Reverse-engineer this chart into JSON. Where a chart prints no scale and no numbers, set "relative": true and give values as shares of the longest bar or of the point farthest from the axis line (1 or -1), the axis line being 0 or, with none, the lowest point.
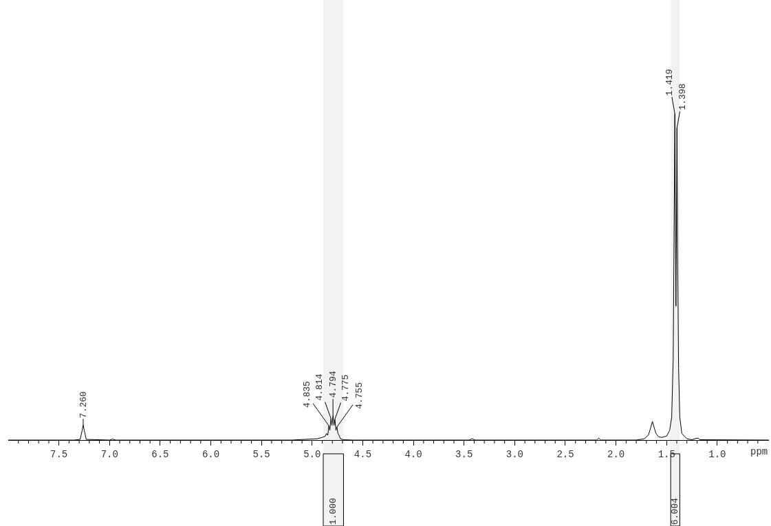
{
  "chart_data": {
    "type": "line",
    "relative": true,
    "xlabel": "ppm",
    "color": "#000000",
    "legend": false,
    "marker": "none",
    "line_style": "solid",
    "x": [
      8.0,
      7.35,
      7.29,
      7.27,
      7.26,
      7.25,
      7.23,
      7.0,
      6.97,
      6.94,
      5.2,
      4.95,
      4.9,
      4.87,
      4.858,
      4.845,
      4.835,
      4.825,
      4.814,
      4.804,
      4.794,
      4.784,
      4.775,
      4.765,
      4.755,
      4.745,
      4.735,
      4.72,
      4.69,
      4.6,
      3.45,
      3.42,
      3.39,
      2.19,
      2.17,
      2.15,
      1.8,
      1.72,
      1.68,
      1.655,
      1.64,
      1.625,
      1.605,
      1.58,
      1.55,
      1.5,
      1.47,
      1.45,
      1.435,
      1.425,
      1.419,
      1.412,
      1.408,
      1.404,
      1.398,
      1.392,
      1.382,
      1.37,
      1.35,
      1.3,
      1.25,
      1.21,
      1.19,
      1.17,
      0.49
    ],
    "values": [
      0,
      0,
      0.002,
      0.03,
      0.046,
      0.03,
      0.002,
      0,
      0.003,
      0,
      0,
      0.004,
      0.008,
      0.012,
      0.02,
      0.015,
      0.044,
      0.03,
      0.066,
      0.045,
      0.075,
      0.045,
      0.064,
      0.03,
      0.04,
      0.02,
      0.015,
      0.004,
      0.001,
      0,
      0,
      0.004,
      0,
      0,
      0.006,
      0,
      0,
      0.004,
      0.015,
      0.04,
      0.057,
      0.04,
      0.02,
      0.01,
      0.008,
      0.012,
      0.03,
      0.07,
      0.25,
      0.7,
      1.0,
      0.6,
      0.41,
      0.6,
      0.956,
      0.6,
      0.22,
      0.07,
      0.02,
      0.004,
      0.001,
      0.005,
      0.006,
      0.001,
      0
    ],
    "xlim": [
      8.0,
      0.49
    ],
    "xticks": [
      {
        "value": 7.9,
        "label": null
      },
      {
        "value": 7.8,
        "label": null
      },
      {
        "value": 7.7,
        "label": null
      },
      {
        "value": 7.6,
        "label": null
      },
      {
        "value": 7.5,
        "label": "7.5"
      },
      {
        "value": 7.4,
        "label": null
      },
      {
        "value": 7.3,
        "label": null
      },
      {
        "value": 7.2,
        "label": null
      },
      {
        "value": 7.1,
        "label": null
      },
      {
        "value": 7.0,
        "label": "7.0"
      },
      {
        "value": 6.9,
        "label": null
      },
      {
        "value": 6.8,
        "label": null
      },
      {
        "value": 6.7,
        "label": null
      },
      {
        "value": 6.6,
        "label": null
      },
      {
        "value": 6.5,
        "label": "6.5"
      },
      {
        "value": 6.4,
        "label": null
      },
      {
        "value": 6.3,
        "label": null
      },
      {
        "value": 6.2,
        "label": null
      },
      {
        "value": 6.1,
        "label": null
      },
      {
        "value": 6.0,
        "label": "6.0"
      },
      {
        "value": 5.9,
        "label": null
      },
      {
        "value": 5.8,
        "label": null
      },
      {
        "value": 5.7,
        "label": null
      },
      {
        "value": 5.6,
        "label": null
      },
      {
        "value": 5.5,
        "label": "5.5"
      },
      {
        "value": 5.4,
        "label": null
      },
      {
        "value": 5.3,
        "label": null
      },
      {
        "value": 5.2,
        "label": null
      },
      {
        "value": 5.1,
        "label": null
      },
      {
        "value": 5.0,
        "label": "5.0"
      },
      {
        "value": 4.9,
        "label": null
      },
      {
        "value": 4.8,
        "label": null
      },
      {
        "value": 4.7,
        "label": null
      },
      {
        "value": 4.6,
        "label": null
      },
      {
        "value": 4.5,
        "label": "4.5"
      },
      {
        "value": 4.4,
        "label": null
      },
      {
        "value": 4.3,
        "label": null
      },
      {
        "value": 4.2,
        "label": null
      },
      {
        "value": 4.1,
        "label": null
      },
      {
        "value": 4.0,
        "label": "4.0"
      },
      {
        "value": 3.9,
        "label": null
      },
      {
        "value": 3.8,
        "label": null
      },
      {
        "value": 3.7,
        "label": null
      },
      {
        "value": 3.6,
        "label": null
      },
      {
        "value": 3.5,
        "label": "3.5"
      },
      {
        "value": 3.4,
        "label": null
      },
      {
        "value": 3.3,
        "label": null
      },
      {
        "value": 3.2,
        "label": null
      },
      {
        "value": 3.1,
        "label": null
      },
      {
        "value": 3.0,
        "label": "3.0"
      },
      {
        "value": 2.9,
        "label": null
      },
      {
        "value": 2.8,
        "label": null
      },
      {
        "value": 2.7,
        "label": null
      },
      {
        "value": 2.6,
        "label": null
      },
      {
        "value": 2.5,
        "label": "2.5"
      },
      {
        "value": 2.4,
        "label": null
      },
      {
        "value": 2.3,
        "label": null
      },
      {
        "value": 2.2,
        "label": null
      },
      {
        "value": 2.1,
        "label": null
      },
      {
        "value": 2.0,
        "label": "2.0"
      },
      {
        "value": 1.9,
        "label": null
      },
      {
        "value": 1.8,
        "label": null
      },
      {
        "value": 1.7,
        "label": null
      },
      {
        "value": 1.6,
        "label": null
      },
      {
        "value": 1.5,
        "label": "1.5"
      },
      {
        "value": 1.4,
        "label": null
      },
      {
        "value": 1.3,
        "label": null
      },
      {
        "value": 1.2,
        "label": null
      },
      {
        "value": 1.1,
        "label": null
      },
      {
        "value": 1.0,
        "label": "1.0"
      },
      {
        "value": 0.9,
        "label": null
      },
      {
        "value": 0.8,
        "label": null
      },
      {
        "value": 0.7,
        "label": null
      },
      {
        "value": 0.6,
        "label": null
      }
    ],
    "annotations": [
      {
        "text": "7.260",
        "x": 7.26,
        "y": 0.046
      },
      {
        "text": "4.835",
        "x": 4.835,
        "y": 0.044
      },
      {
        "text": "4.814",
        "x": 4.814,
        "y": 0.066
      },
      {
        "text": "4.794",
        "x": 4.794,
        "y": 0.075
      },
      {
        "text": "4.775",
        "x": 4.775,
        "y": 0.064
      },
      {
        "text": "4.755",
        "x": 4.755,
        "y": 0.04
      },
      {
        "text": "1.419",
        "x": 1.419,
        "y": 1.0
      },
      {
        "text": "1.398",
        "x": 1.398,
        "y": 0.956
      }
    ],
    "bands": [
      {
        "axis": "x",
        "from": 4.89,
        "to": 4.69,
        "label": "1.000"
      },
      {
        "axis": "x",
        "from": 1.46,
        "to": 1.37,
        "label": "6.004"
      }
    ]
  }
}
